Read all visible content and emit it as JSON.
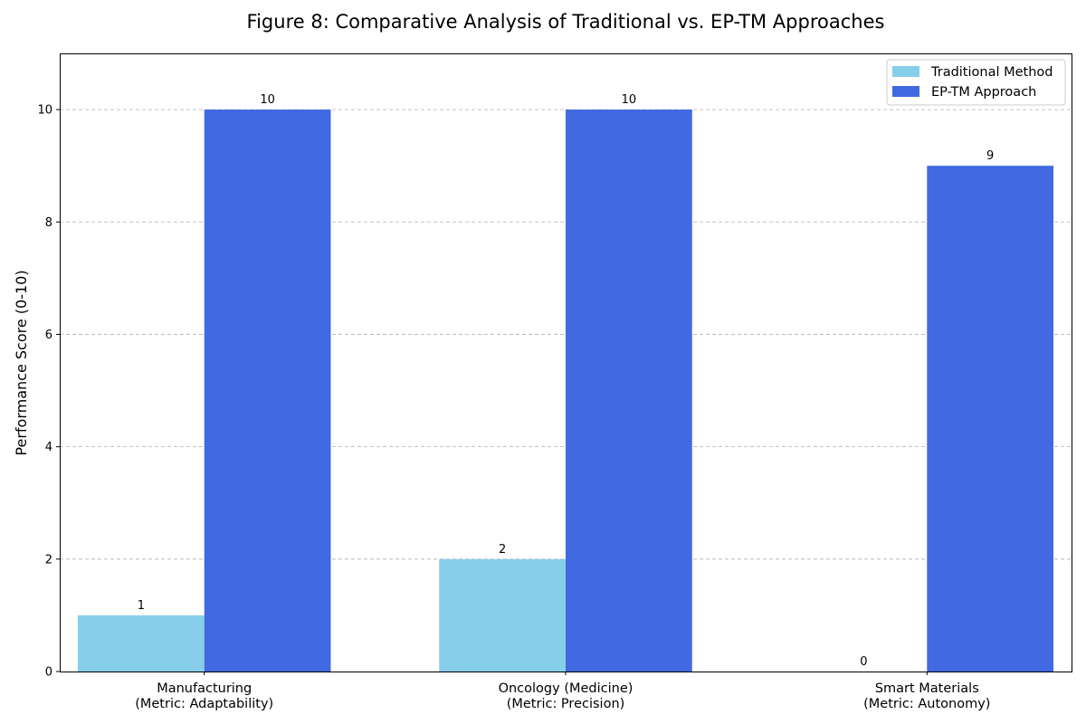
{
  "chart_data": {
    "type": "bar",
    "title": "Figure 8: Comparative Analysis of Traditional vs. EP-TM Approaches",
    "xlabel": "",
    "ylabel": "Performance Score (0-10)",
    "ylim": [
      0,
      11
    ],
    "yticks": [
      0,
      2,
      4,
      6,
      8,
      10
    ],
    "grid": "y-dashed",
    "legend_position": "top-right",
    "categories": [
      [
        "Manufacturing",
        "(Metric: Adaptability)"
      ],
      [
        "Oncology (Medicine)",
        "(Metric: Precision)"
      ],
      [
        "Smart Materials",
        "(Metric: Autonomy)"
      ]
    ],
    "series": [
      {
        "name": "Traditional Method",
        "color": "#87CEEB",
        "values": [
          1,
          2,
          0
        ]
      },
      {
        "name": "EP-TM Approach",
        "color": "#4169E1",
        "values": [
          10,
          10,
          9
        ]
      }
    ]
  }
}
